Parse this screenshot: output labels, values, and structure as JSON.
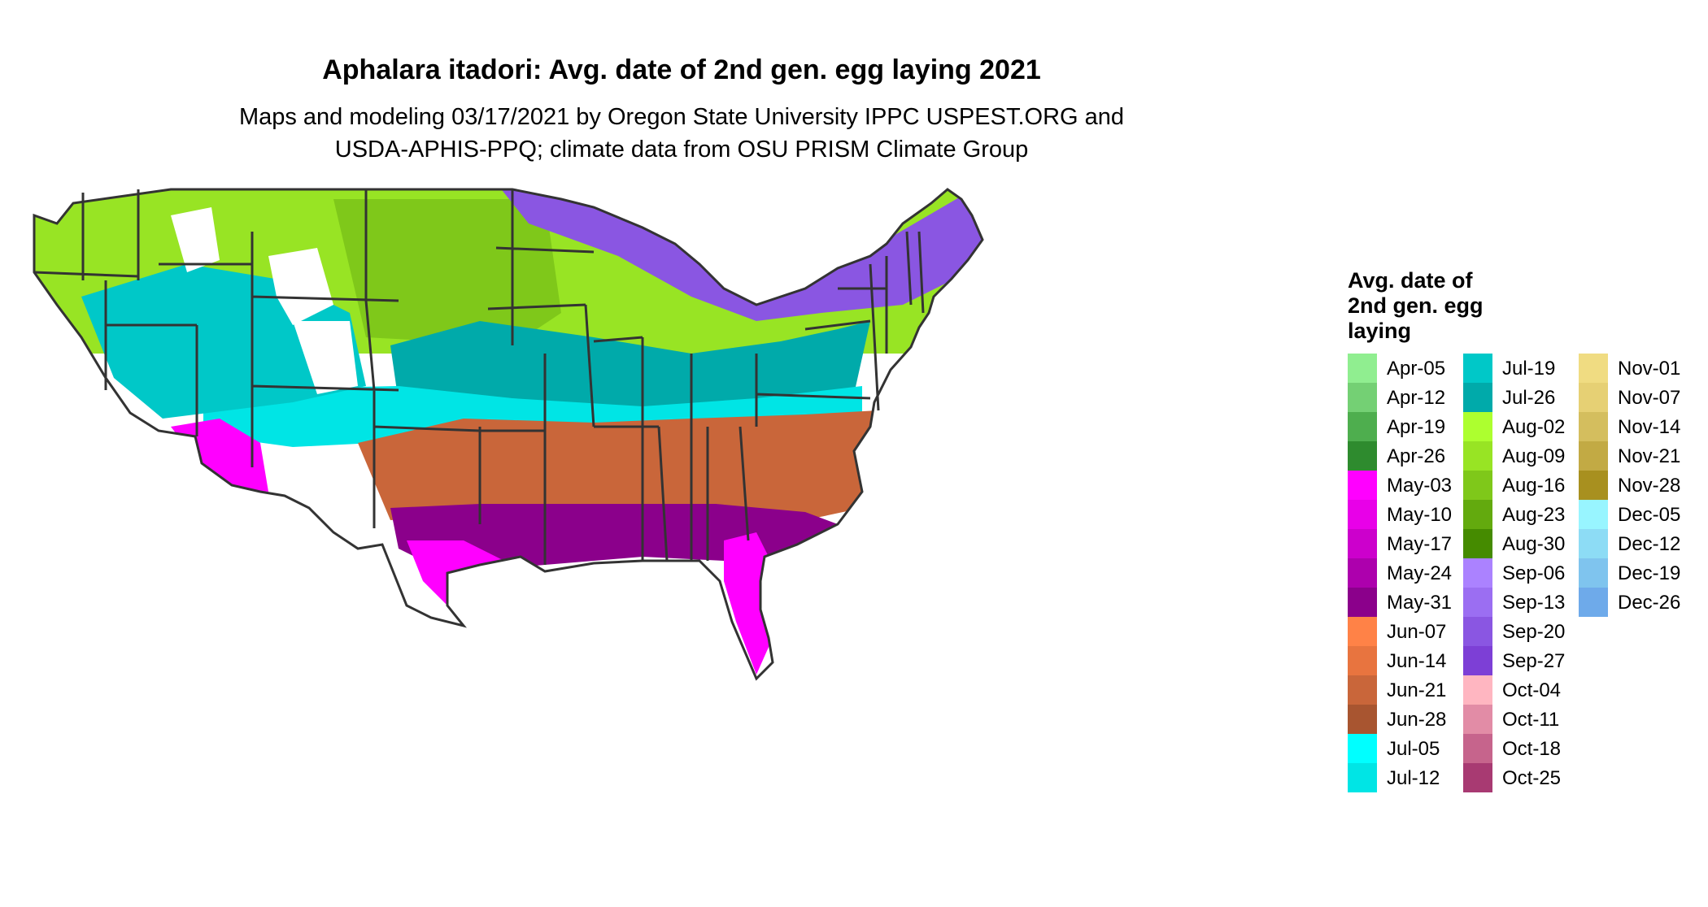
{
  "title": "Aphalara itadori: Avg. date of 2nd gen. egg laying 2021",
  "subtitle": [
    "Maps and modeling 03/17/2021 by Oregon State University IPPC USPEST.ORG and",
    "USDA-APHIS-PPQ; climate data from OSU PRISM Climate Group"
  ],
  "legend": {
    "title": [
      "Avg. date of",
      "2nd gen. egg",
      "laying"
    ],
    "columns": [
      [
        {
          "label": "Apr-05",
          "color": "#90ee90"
        },
        {
          "label": "Apr-12",
          "color": "#74d074"
        },
        {
          "label": "Apr-19",
          "color": "#4eae4e"
        },
        {
          "label": "Apr-26",
          "color": "#2e8b2e"
        },
        {
          "label": "May-03",
          "color": "#ff00ff"
        },
        {
          "label": "May-10",
          "color": "#e800e8"
        },
        {
          "label": "May-17",
          "color": "#cc00cc"
        },
        {
          "label": "May-24",
          "color": "#ad00ad"
        },
        {
          "label": "May-31",
          "color": "#8b008b"
        },
        {
          "label": "Jun-07",
          "color": "#ff8247"
        },
        {
          "label": "Jun-14",
          "color": "#e8743f"
        },
        {
          "label": "Jun-21",
          "color": "#c9663a"
        },
        {
          "label": "Jun-28",
          "color": "#a85530"
        },
        {
          "label": "Jul-05",
          "color": "#00ffff"
        },
        {
          "label": "Jul-12",
          "color": "#00e5e5"
        }
      ],
      [
        {
          "label": "Jul-19",
          "color": "#00c8c8"
        },
        {
          "label": "Jul-26",
          "color": "#00aaaa"
        },
        {
          "label": "Aug-02",
          "color": "#adff2f"
        },
        {
          "label": "Aug-09",
          "color": "#98e424"
        },
        {
          "label": "Aug-16",
          "color": "#7fc81a"
        },
        {
          "label": "Aug-23",
          "color": "#63aa0e"
        },
        {
          "label": "Aug-30",
          "color": "#458b00"
        },
        {
          "label": "Sep-06",
          "color": "#ab82ff"
        },
        {
          "label": "Sep-13",
          "color": "#9b6ef2"
        },
        {
          "label": "Sep-20",
          "color": "#8a56e2"
        },
        {
          "label": "Sep-27",
          "color": "#7d3fd6"
        },
        {
          "label": "Oct-04",
          "color": "#ffb6c1"
        },
        {
          "label": "Oct-11",
          "color": "#e28ca6"
        },
        {
          "label": "Oct-18",
          "color": "#c6648c"
        },
        {
          "label": "Oct-25",
          "color": "#a83a72"
        }
      ],
      [
        {
          "label": "Nov-01",
          "color": "#f0dc82"
        },
        {
          "label": "Nov-07",
          "color": "#e6d074"
        },
        {
          "label": "Nov-14",
          "color": "#d4be5e"
        },
        {
          "label": "Nov-21",
          "color": "#c2aa44"
        },
        {
          "label": "Nov-28",
          "color": "#a8901f"
        },
        {
          "label": "Dec-05",
          "color": "#98f5ff"
        },
        {
          "label": "Dec-12",
          "color": "#8ddcf5"
        },
        {
          "label": "Dec-19",
          "color": "#7fc4ee"
        },
        {
          "label": "Dec-26",
          "color": "#6eaaea"
        }
      ]
    ]
  },
  "map": {
    "region": "Conterminous United States",
    "bands": [
      {
        "name": "northern-tier",
        "color": "#98e424"
      },
      {
        "name": "great-plains-north",
        "color": "#7fc81a"
      },
      {
        "name": "northern-lakes",
        "color": "#8a56e2"
      },
      {
        "name": "central-band",
        "color": "#00aaaa"
      },
      {
        "name": "mid-south",
        "color": "#00e5e5"
      },
      {
        "name": "southern-band",
        "color": "#c9663a"
      },
      {
        "name": "gulf-coast",
        "color": "#8b008b"
      },
      {
        "name": "florida-texas-south",
        "color": "#ff00ff"
      },
      {
        "name": "southwest-desert",
        "color": "#ff00ff"
      },
      {
        "name": "mountain-west",
        "color": "#00c8c8"
      },
      {
        "name": "high-elevation",
        "color": "#ffffff"
      }
    ]
  }
}
